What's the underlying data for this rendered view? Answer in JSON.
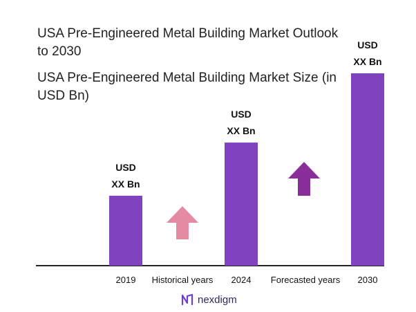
{
  "title": "USA Pre-Engineered Metal Building Market Outlook to 2030",
  "subtitle": "USA Pre-Engineered Metal Building Market Size (in USD Bn)",
  "chart_data": {
    "type": "bar",
    "categories": [
      "2019",
      "2024",
      "2030"
    ],
    "values": [
      1.0,
      1.76,
      2.75
    ],
    "value_labels": [
      [
        "USD",
        "XX Bn"
      ],
      [
        "USD",
        "XX Bn"
      ],
      [
        "USD",
        "XX Bn"
      ]
    ],
    "between_labels": [
      "Historical years",
      "Forecasted years"
    ],
    "bar_color": "#8142c0",
    "arrow_colors": [
      "#e48aa3",
      "#8a2f9a"
    ],
    "ylim": [
      0,
      2.75
    ],
    "grid": false
  },
  "logo": {
    "text": "nexdigm",
    "icon": "nexdigm-logo-icon",
    "color": "#6a3fd8"
  }
}
